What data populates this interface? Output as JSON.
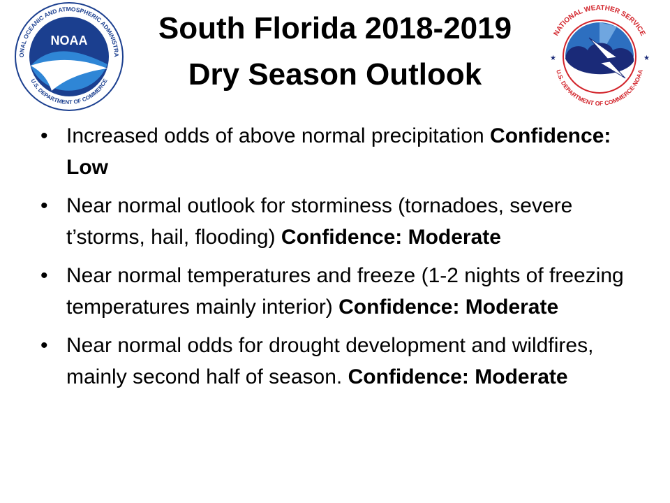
{
  "title": {
    "line1": "South Florida 2018-2019",
    "line2": "Dry Season Outlook"
  },
  "logos": {
    "left": {
      "icon": "noaa-logo-icon",
      "ring_text": "NATIONAL OCEANIC AND ATMOSPHERIC ADMINISTRATION",
      "ring_text_bottom": "U.S. DEPARTMENT OF COMMERCE",
      "center_text": "NOAA",
      "colors": {
        "navy": "#1b3f8f",
        "sky": "#2f86d6",
        "white": "#ffffff"
      }
    },
    "right": {
      "icon": "nws-logo-icon",
      "ring_text": "NATIONAL WEATHER SERVICE",
      "ring_text_bottom": "U.S. DEPARTMENT OF COMMERCE-NOAA",
      "colors": {
        "red": "#d2232a",
        "navy": "#1a2a78",
        "blue": "#2d6fc0",
        "white": "#ffffff"
      }
    }
  },
  "bullets": [
    {
      "text": "Increased odds of above normal precipitation ",
      "confidence": "Confidence: Low"
    },
    {
      "text": "Near normal outlook for storminess (tornadoes, severe t’storms, hail, flooding) ",
      "confidence": "Confidence: Moderate"
    },
    {
      "text": "Near normal temperatures and freeze (1-2 nights of freezing temperatures mainly interior) ",
      "confidence": "Confidence: Moderate"
    },
    {
      "text": "Near normal odds for drought development and wildfires, mainly second half of season. ",
      "confidence": "Confidence: Moderate"
    }
  ],
  "bullet_glyph": "•"
}
